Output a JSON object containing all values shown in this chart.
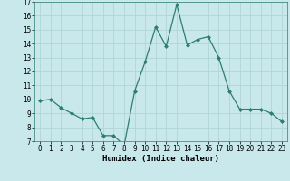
{
  "x": [
    0,
    1,
    2,
    3,
    4,
    5,
    6,
    7,
    8,
    9,
    10,
    11,
    12,
    13,
    14,
    15,
    16,
    17,
    18,
    19,
    20,
    21,
    22,
    23
  ],
  "y": [
    9.9,
    10.0,
    9.4,
    9.0,
    8.6,
    8.7,
    7.4,
    7.4,
    6.7,
    10.6,
    12.7,
    15.2,
    13.8,
    16.8,
    13.9,
    14.3,
    14.5,
    13.0,
    10.6,
    9.3,
    9.3,
    9.3,
    9.0,
    8.4
  ],
  "xlabel": "Humidex (Indice chaleur)",
  "ylim": [
    7,
    17
  ],
  "xlim_min": -0.5,
  "xlim_max": 23.5,
  "yticks": [
    7,
    8,
    9,
    10,
    11,
    12,
    13,
    14,
    15,
    16,
    17
  ],
  "xtick_labels": [
    "0",
    "1",
    "2",
    "3",
    "4",
    "5",
    "6",
    "7",
    "8",
    "9",
    "10",
    "11",
    "12",
    "13",
    "14",
    "15",
    "16",
    "17",
    "18",
    "19",
    "20",
    "21",
    "22",
    "23"
  ],
  "line_color": "#2e7d6e",
  "marker": "D",
  "marker_size": 2.0,
  "background_color": "#c8e8ec",
  "grid_color": "#b0d4d8",
  "xlabel_fontsize": 6.5,
  "tick_fontsize": 5.5
}
